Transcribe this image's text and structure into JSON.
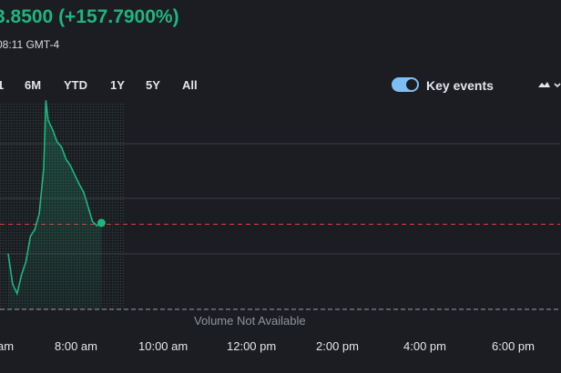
{
  "quote": {
    "price_change": "3.8500  (+157.7900%)",
    "timestamp": "08:11 GMT-4"
  },
  "range_tabs": [
    {
      "label": "1",
      "partial": true
    },
    {
      "label": "6M"
    },
    {
      "label": "YTD"
    },
    {
      "label": "1Y"
    },
    {
      "label": "5Y"
    },
    {
      "label": "All"
    }
  ],
  "key_events": {
    "label": "Key events",
    "enabled": true,
    "accent_color": "#7fbef5"
  },
  "chart_type_icon": "mountain-chart-dropdown-icon",
  "colors": {
    "background": "#1b1d22",
    "price_line": "#1fb57f",
    "previous_close_line": "#d9433f",
    "grid": "#3a3d44",
    "text": "#e3e5ea",
    "muted_text": "#8f939b"
  },
  "chart": {
    "volume_text": "Volume Not Available",
    "x_tick_labels": [
      "am",
      "8:00 am",
      "10:00 am",
      "12:00 pm",
      "2:00 pm",
      "4:00 pm",
      "6:00 pm"
    ]
  },
  "chart_data": {
    "type": "area",
    "title": "",
    "xlabel": "",
    "ylabel": "",
    "grid": true,
    "x_ticks": [
      "am",
      "8:00 am",
      "10:00 am",
      "12:00 pm",
      "2:00 pm",
      "4:00 pm",
      "6:00 pm"
    ],
    "x_domain_hours": [
      7.0,
      19.0
    ],
    "series": [
      {
        "x": [
          7.0,
          7.1,
          7.2,
          7.3,
          7.4,
          7.5,
          7.6,
          7.7,
          7.8,
          7.85,
          7.9,
          8.0,
          8.1,
          8.2,
          8.3,
          8.4,
          8.5,
          8.6,
          8.7,
          8.8,
          8.9,
          9.0,
          9.1
        ],
        "values": [
          0.78,
          0.55,
          0.48,
          0.62,
          0.72,
          0.91,
          0.96,
          1.08,
          1.42,
          1.93,
          1.78,
          1.71,
          1.62,
          1.58,
          1.49,
          1.44,
          1.37,
          1.3,
          1.24,
          1.13,
          1.02,
          0.99,
          1.01
        ]
      }
    ],
    "reference_lines": [
      {
        "style": "dashed",
        "value": 1.0
      }
    ]
  }
}
